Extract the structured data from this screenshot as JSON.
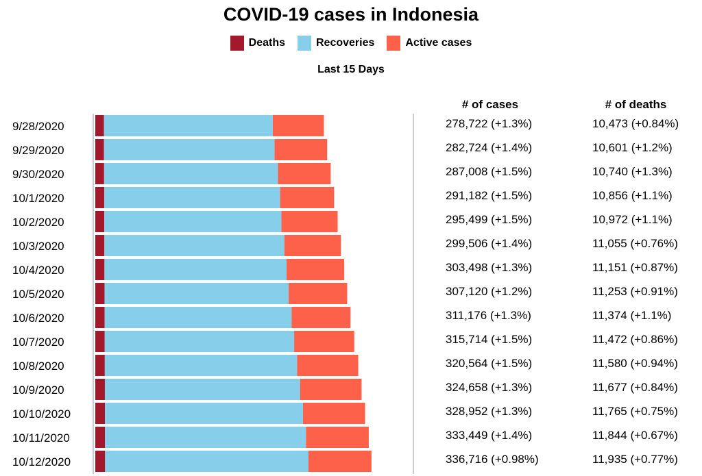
{
  "colors": {
    "deaths": "#a3192b",
    "recoveries": "#87ceea",
    "active": "#fe6149",
    "axis": "#bbbbbb"
  },
  "chart_data": {
    "type": "bar",
    "stacked": true,
    "orientation": "horizontal",
    "title": "COVID-19 cases in Indonesia",
    "subtitle": "Last 15 Days",
    "legend": [
      "Deaths",
      "Recoveries",
      "Active cases"
    ],
    "columns": {
      "cases": "# of cases",
      "deaths": "# of deaths"
    },
    "categories": [
      "9/28/2020",
      "9/29/2020",
      "9/30/2020",
      "10/1/2020",
      "10/2/2020",
      "10/3/2020",
      "10/4/2020",
      "10/5/2020",
      "10/6/2020",
      "10/7/2020",
      "10/8/2020",
      "10/9/2020",
      "10/10/2020",
      "10/11/2020",
      "10/12/2020"
    ],
    "series": [
      {
        "name": "Deaths",
        "values": [
          10473,
          10601,
          10740,
          10856,
          10972,
          11055,
          11151,
          11253,
          11374,
          11472,
          11580,
          11677,
          11765,
          11844,
          11935
        ]
      },
      {
        "name": "Recoveries",
        "values": [
          206000,
          208000,
          212000,
          214500,
          216000,
          219500,
          222000,
          224500,
          228000,
          231000,
          234500,
          238000,
          241500,
          245000,
          248000
        ]
      },
      {
        "name": "Active cases",
        "values": [
          62249,
          64123,
          64268,
          65826,
          68527,
          68951,
          70347,
          71367,
          71802,
          73242,
          74484,
          74981,
          75687,
          76605,
          76781
        ]
      }
    ],
    "cases_labels": [
      "278,722 (+1.3%)",
      "282,724 (+1.4%)",
      "287,008 (+1.5%)",
      "291,182 (+1.5%)",
      "295,499 (+1.5%)",
      "299,506 (+1.4%)",
      "303,498 (+1.3%)",
      "307,120 (+1.2%)",
      "311,176 (+1.3%)",
      "315,714 (+1.5%)",
      "320,564 (+1.5%)",
      "324,658 (+1.3%)",
      "328,952 (+1.3%)",
      "333,449 (+1.4%)",
      "336,716 (+0.98%)"
    ],
    "deaths_labels": [
      "10,473 (+0.84%)",
      "10,601 (+1.2%)",
      "10,740 (+1.3%)",
      "10,856 (+1.1%)",
      "10,972 (+1.1%)",
      "11,055 (+0.76%)",
      "11,151 (+0.87%)",
      "11,253 (+0.91%)",
      "11,374 (+1.1%)",
      "11,472 (+0.86%)",
      "11,580 (+0.94%)",
      "11,677 (+0.84%)",
      "11,765 (+0.75%)",
      "11,844 (+0.67%)",
      "11,935 (+0.77%)"
    ],
    "xlim": [
      0,
      387000
    ]
  }
}
